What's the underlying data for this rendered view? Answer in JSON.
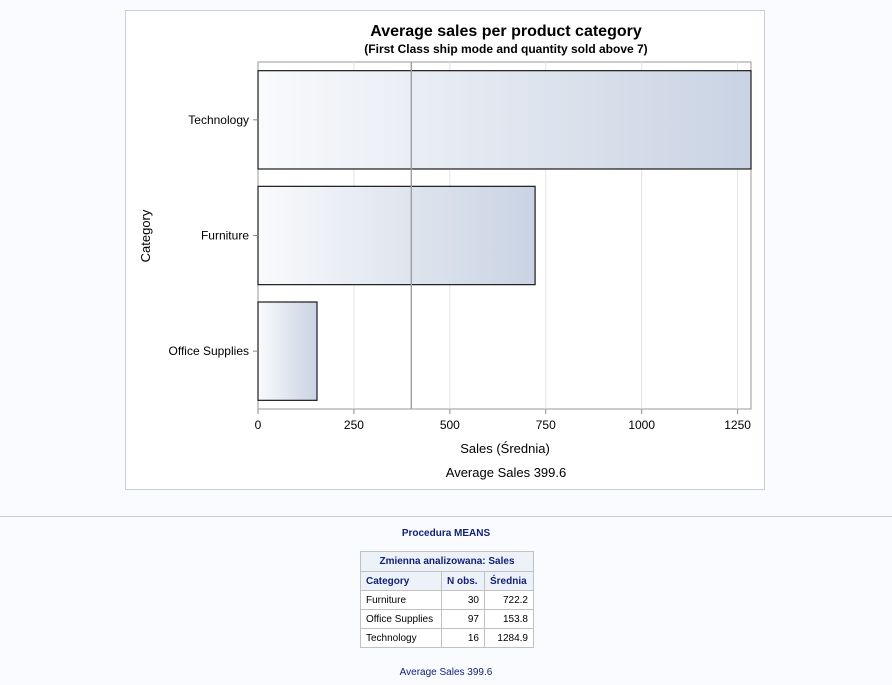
{
  "chart_data": {
    "type": "bar",
    "orientation": "horizontal",
    "title": "Average sales per product category",
    "subtitle": "(First Class ship mode and quantity sold above 7)",
    "categories": [
      "Technology",
      "Furniture",
      "Office Supplies"
    ],
    "values": [
      1284.9,
      722.2,
      153.8
    ],
    "xlabel": "Sales (Średnia)",
    "ylabel": "Category",
    "xlim": [
      0,
      1284.9
    ],
    "xticks": [
      "0",
      "250",
      "500",
      "750",
      "1000",
      "1250"
    ],
    "reference_line": {
      "value": 399.6
    },
    "footnote": "Average Sales 399.6",
    "grid": true,
    "bar_fill": {
      "from": "#f9fafc",
      "to": "#c9d3e3"
    },
    "bar_stroke": "#1a1a1a"
  },
  "report": {
    "procedure_title": "Procedura MEANS",
    "table_caption": "Zmienna analizowana: Sales",
    "columns": [
      "Category",
      "N obs.",
      "Średnia"
    ],
    "rows": [
      {
        "category": "Furniture",
        "n": "30",
        "mean": "722.2"
      },
      {
        "category": "Office Supplies",
        "n": "97",
        "mean": "153.8"
      },
      {
        "category": "Technology",
        "n": "16",
        "mean": "1284.9"
      }
    ],
    "footer": "Average Sales 399.6"
  },
  "colors": {
    "header_text": "#112277",
    "header_bg": "#edf2f9",
    "page_bg": "#fafbfe"
  }
}
